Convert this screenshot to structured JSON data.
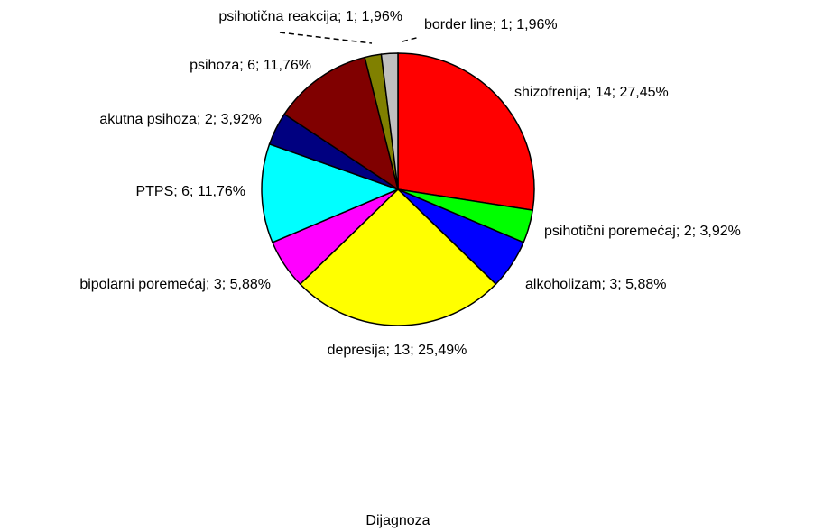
{
  "chart_data": {
    "type": "pie",
    "title": "Dijagnoza",
    "values": [
      14,
      2,
      3,
      13,
      3,
      6,
      2,
      6,
      1,
      1
    ],
    "value_labels": [
      "shizofrenija; 14; 27,45%",
      "psihotični poremećaj; 2; 3,92%",
      "alkoholizam; 3; 5,88%",
      "depresija; 13; 25,49%",
      "bipolarni poremećaj; 3; 5,88%",
      "PTPS; 6; 11,76%",
      "akutna psihoza; 2; 3,92%",
      "psihoza; 6; 11,76%",
      "psihotična reakcija; 1; 1,96%",
      "border line; 1; 1,96%"
    ],
    "colors": [
      "#ff0000",
      "#00ff00",
      "#0000ff",
      "#ffff00",
      "#ff00ff",
      "#00ffff",
      "#000080",
      "#800000",
      "#808000",
      "#c0c0c0"
    ]
  }
}
